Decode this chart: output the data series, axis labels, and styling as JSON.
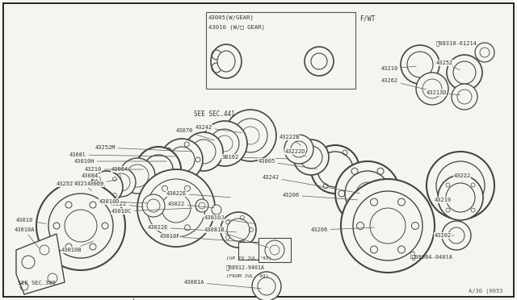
{
  "bg_color": "#f5f5f0",
  "lc": "#555555",
  "pc": "#444444",
  "fig_width": 6.4,
  "fig_height": 3.72,
  "title_ref": "A/30 (0053",
  "inset_label1": "43005(W/GEAR)",
  "inset_label2": "43010 (W/□ GEAR)",
  "fwt_label": "F/WT",
  "see441": "SEE SEC.441",
  "see380": "SEE SEC.380"
}
